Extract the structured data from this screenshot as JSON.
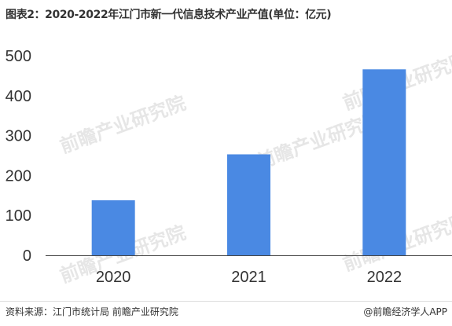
{
  "title": "图表2：2020-2022年江门市新一代信息技术产业产值(单位：亿元)",
  "source": "资料来源：江门市统计局 前瞻产业研究院",
  "brand": "@前瞻经济学人APP",
  "watermark": "前瞻产业研究院",
  "colors": {
    "bar": "#4a89e3",
    "axis": "#444444",
    "text": "#333333"
  },
  "chart_data": {
    "type": "bar",
    "title": "图表2：2020-2022年江门市新一代信息技术产业产值(单位：亿元)",
    "categories": [
      "2020",
      "2021",
      "2022"
    ],
    "values": [
      138,
      253,
      466
    ],
    "yticks": [
      0,
      100,
      200,
      300,
      400,
      500
    ],
    "ylim": [
      0,
      500
    ],
    "xlabel": "",
    "ylabel": "",
    "grid": false,
    "legend": "none"
  }
}
